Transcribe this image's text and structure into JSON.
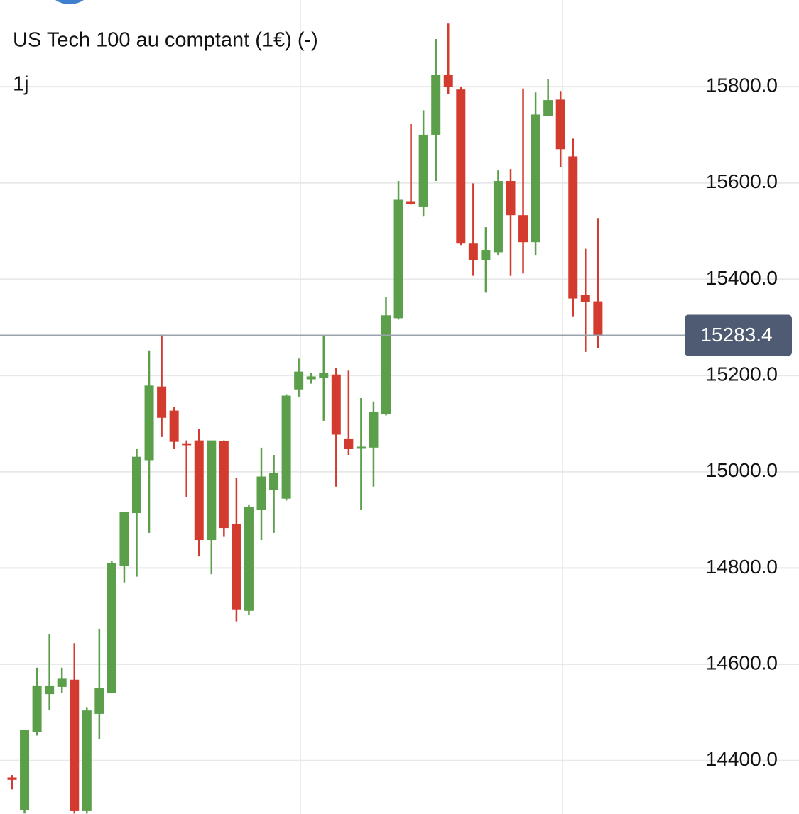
{
  "chart_data": {
    "type": "candlestick",
    "title": "US Tech 100 au comptant (1€) (-)",
    "interval": "1j",
    "up_color": "#5b9f4a",
    "down_color": "#d23b2e",
    "series": [
      {
        "name": "open",
        "values": [
          14365,
          14297,
          14460,
          14538,
          14553,
          14568,
          14295,
          14497,
          14541,
          14804,
          14914,
          15024,
          15177,
          15127,
          15059,
          15065,
          14858,
          15063,
          14892,
          14711,
          14920,
          14962,
          14944,
          15171,
          15192,
          15195,
          15202,
          15069,
          15049,
          15050,
          15120,
          15319,
          15562,
          15551,
          15700,
          15824,
          15794,
          15474,
          15440,
          15456,
          15604,
          15533,
          15477,
          15739,
          15773,
          15655,
          15368,
          15354
        ]
      },
      {
        "name": "high",
        "values": [
          14370,
          14297,
          14593,
          14663,
          14593,
          14644,
          14511,
          14674,
          14814,
          14917,
          15047,
          15252,
          15285,
          15134,
          15065,
          15089,
          15065,
          15065,
          14987,
          14932,
          15050,
          15035,
          15161,
          15235,
          15205,
          15282,
          15216,
          15210,
          15153,
          15146,
          15363,
          15604,
          15722,
          15751,
          15899,
          15931,
          15800,
          15599,
          15508,
          15626,
          15629,
          15796,
          15788,
          15815,
          15791,
          15692,
          15463,
          15527
        ]
      },
      {
        "name": "low",
        "values": [
          14340,
          14290,
          14452,
          14504,
          14541,
          14290,
          14290,
          14445,
          14541,
          14770,
          14782,
          14873,
          15072,
          15047,
          14947,
          14824,
          14787,
          14866,
          14689,
          14703,
          14858,
          14873,
          14940,
          15156,
          15183,
          15106,
          14969,
          15035,
          14920,
          14969,
          15117,
          15316,
          15555,
          15530,
          15604,
          15784,
          15471,
          15407,
          15372,
          15449,
          15407,
          15412,
          15449,
          15739,
          15633,
          15323,
          15249,
          15257
        ]
      },
      {
        "name": "close",
        "values": [
          14360,
          14464,
          14556,
          14556,
          14570,
          14295,
          14504,
          14551,
          14810,
          14917,
          15031,
          15179,
          15112,
          15062,
          15055,
          14858,
          15065,
          14883,
          14714,
          14926,
          14990,
          14997,
          15158,
          15208,
          15198,
          15205,
          15077,
          15047,
          15052,
          15124,
          15325,
          15565,
          15556,
          15700,
          15825,
          15800,
          15474,
          15440,
          15461,
          15604,
          15533,
          15477,
          15742,
          15772,
          15670,
          15360,
          15353,
          15283.4
        ]
      }
    ],
    "last_price": 15283.4,
    "ylim": [
      14289,
      15980
    ],
    "yticks": [
      {
        "value": 14400,
        "label": "14400.0"
      },
      {
        "value": 14600,
        "label": "14600.0"
      },
      {
        "value": 14800,
        "label": "14800.0"
      },
      {
        "value": 15000,
        "label": "15000.0"
      },
      {
        "value": 15200,
        "label": "15200.0"
      },
      {
        "value": 15400,
        "label": "15400.0"
      },
      {
        "value": 15600,
        "label": "15600.0"
      },
      {
        "value": 15800,
        "label": "15800.0"
      }
    ],
    "grid": true
  }
}
